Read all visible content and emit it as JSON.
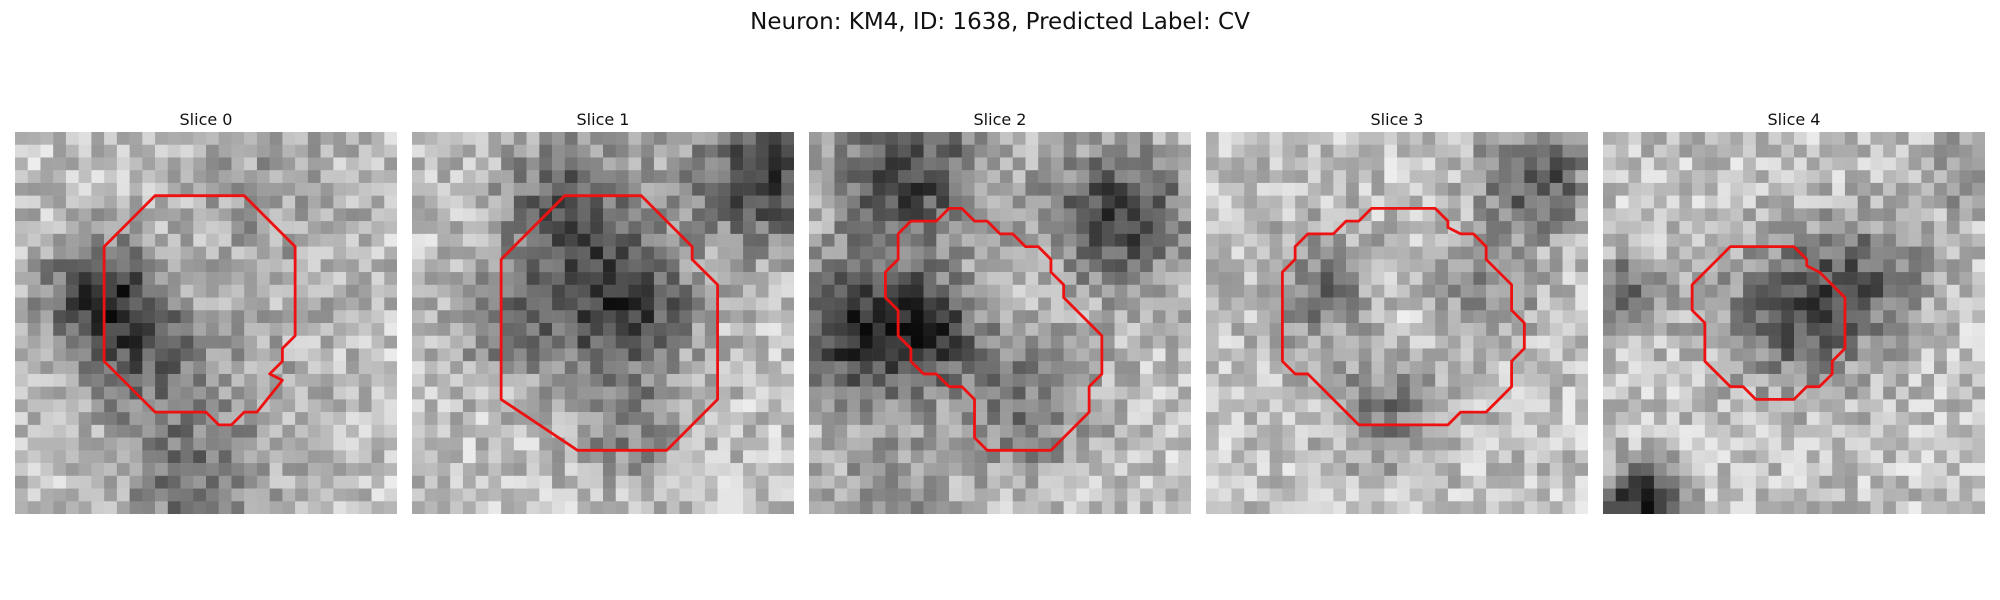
{
  "figure": {
    "title": "Neuron: KM4, ID: 1638, Predicted Label: CV"
  },
  "slices": [
    {
      "title": "Slice 0"
    },
    {
      "title": "Slice 1"
    },
    {
      "title": "Slice 2"
    },
    {
      "title": "Slice 3"
    },
    {
      "title": "Slice 4"
    }
  ],
  "colors": {
    "contour": "#ee1111",
    "background": "#ffffff"
  }
}
